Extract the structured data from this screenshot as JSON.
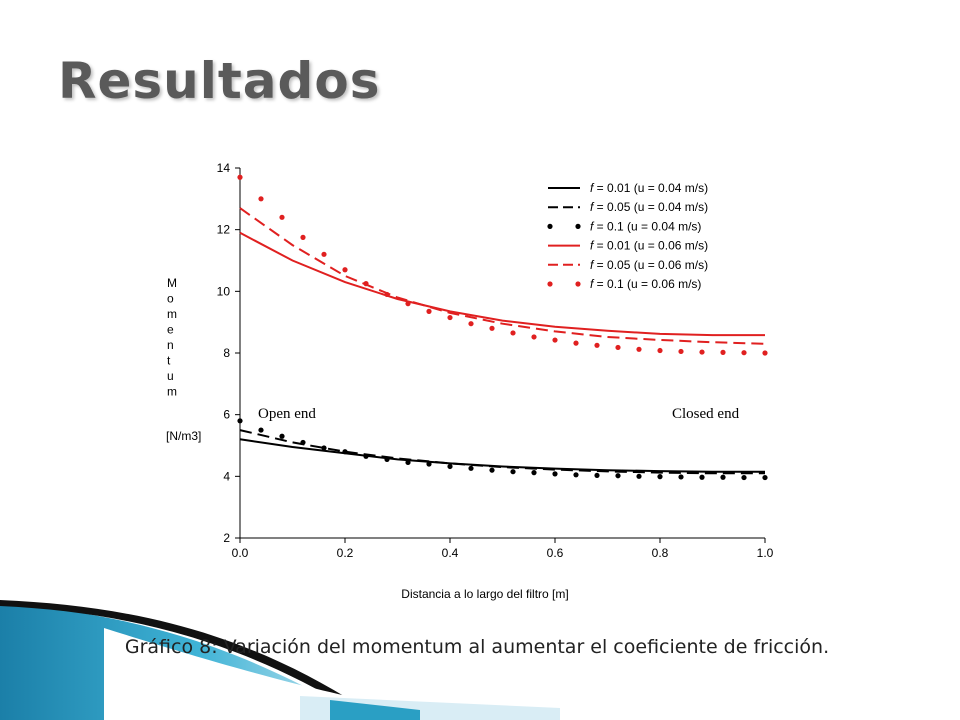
{
  "slide": {
    "title": "Resultados",
    "caption": "Gráfico 8: Variación del momentum al aumentar el coeficiente de fricción."
  },
  "colors": {
    "black_series": "#000000",
    "red_series": "#e02020",
    "title": "#5a5a5a",
    "deco_teal": "#2a9fc4",
    "deco_dark": "#1a1a1a"
  },
  "chart_data": {
    "type": "line",
    "xlabel": "Distancia a lo largo del filtro [m]",
    "ylabel_letters": [
      "M",
      "o",
      "m",
      "e",
      "n",
      "t",
      "u",
      "m"
    ],
    "ylabel_unit": "[N/m3]",
    "xlim": [
      0,
      1.0
    ],
    "ylim": [
      2,
      14
    ],
    "xticks": [
      0.0,
      0.2,
      0.4,
      0.6,
      0.8,
      1.0
    ],
    "xtick_labels": [
      "0.0",
      "0.2",
      "0.4",
      "0.6",
      "0.8",
      "1.0"
    ],
    "yticks": [
      2,
      4,
      6,
      8,
      10,
      12,
      14
    ],
    "ytick_labels": [
      "2",
      "4",
      "6",
      "8",
      "10",
      "12",
      "14"
    ],
    "grid": false,
    "legend_position": "top-right",
    "annotations": [
      "Open end",
      "Closed end"
    ],
    "series": [
      {
        "name": "f = 0.01 (u = 0.04 m/s)",
        "f": "f",
        "label_rest": " = 0.01  (u = 0.04 m/s)",
        "color": "#000000",
        "style": "solid",
        "x": [
          0,
          0.1,
          0.2,
          0.3,
          0.4,
          0.5,
          0.6,
          0.7,
          0.8,
          0.9,
          1.0
        ],
        "y": [
          5.2,
          4.95,
          4.75,
          4.55,
          4.42,
          4.32,
          4.25,
          4.2,
          4.17,
          4.15,
          4.15
        ]
      },
      {
        "name": "f = 0.05 (u = 0.04 m/s)",
        "f": "f",
        "label_rest": " = 0.05  (u = 0.04 m/s)",
        "color": "#000000",
        "style": "dashed",
        "x": [
          0,
          0.1,
          0.2,
          0.3,
          0.4,
          0.5,
          0.6,
          0.7,
          0.8,
          0.9,
          1.0
        ],
        "y": [
          5.5,
          5.1,
          4.8,
          4.58,
          4.42,
          4.3,
          4.22,
          4.16,
          4.12,
          4.1,
          4.1
        ]
      },
      {
        "name": "f = 0.1 (u = 0.04 m/s)",
        "f": "f",
        "label_rest": " = 0.1    (u = 0.04 m/s)",
        "color": "#000000",
        "style": "dotted",
        "x": [
          0,
          0.04,
          0.08,
          0.12,
          0.16,
          0.2,
          0.24,
          0.28,
          0.32,
          0.36,
          0.4,
          0.44,
          0.48,
          0.52,
          0.56,
          0.6,
          0.64,
          0.68,
          0.72,
          0.76,
          0.8,
          0.84,
          0.88,
          0.92,
          0.96,
          1.0
        ],
        "y": [
          5.8,
          5.5,
          5.3,
          5.1,
          4.92,
          4.8,
          4.65,
          4.55,
          4.45,
          4.4,
          4.32,
          4.26,
          4.2,
          4.15,
          4.12,
          4.08,
          4.05,
          4.03,
          4.02,
          4.0,
          3.99,
          3.98,
          3.97,
          3.97,
          3.96,
          3.96
        ]
      },
      {
        "name": "f = 0.01 (u = 0.06 m/s)",
        "f": "f",
        "label_rest": " = 0.01  (u = 0.06 m/s)",
        "color": "#e02020",
        "style": "solid",
        "x": [
          0,
          0.1,
          0.2,
          0.3,
          0.4,
          0.5,
          0.6,
          0.7,
          0.8,
          0.9,
          1.0
        ],
        "y": [
          11.9,
          11.0,
          10.3,
          9.75,
          9.35,
          9.05,
          8.85,
          8.72,
          8.62,
          8.58,
          8.58
        ]
      },
      {
        "name": "f = 0.05 (u = 0.06 m/s)",
        "f": "f",
        "label_rest": " = 0.05  (u = 0.06 m/s)",
        "color": "#e02020",
        "style": "dashed",
        "x": [
          0,
          0.1,
          0.2,
          0.3,
          0.4,
          0.5,
          0.6,
          0.7,
          0.8,
          0.9,
          1.0
        ],
        "y": [
          12.7,
          11.5,
          10.5,
          9.8,
          9.3,
          8.95,
          8.7,
          8.52,
          8.42,
          8.35,
          8.3
        ]
      },
      {
        "name": "f = 0.1 (u = 0.06 m/s)",
        "f": "f",
        "label_rest": " = 0.1    (u = 0.06 m/s)",
        "color": "#e02020",
        "style": "dotted",
        "x": [
          0,
          0.04,
          0.08,
          0.12,
          0.16,
          0.2,
          0.24,
          0.28,
          0.32,
          0.36,
          0.4,
          0.44,
          0.48,
          0.52,
          0.56,
          0.6,
          0.64,
          0.68,
          0.72,
          0.76,
          0.8,
          0.84,
          0.88,
          0.92,
          0.96,
          1.0
        ],
        "y": [
          13.7,
          13.0,
          12.4,
          11.75,
          11.2,
          10.7,
          10.25,
          9.9,
          9.6,
          9.35,
          9.15,
          8.95,
          8.8,
          8.65,
          8.52,
          8.42,
          8.32,
          8.25,
          8.18,
          8.12,
          8.08,
          8.05,
          8.03,
          8.02,
          8.01,
          8.0
        ]
      }
    ]
  }
}
